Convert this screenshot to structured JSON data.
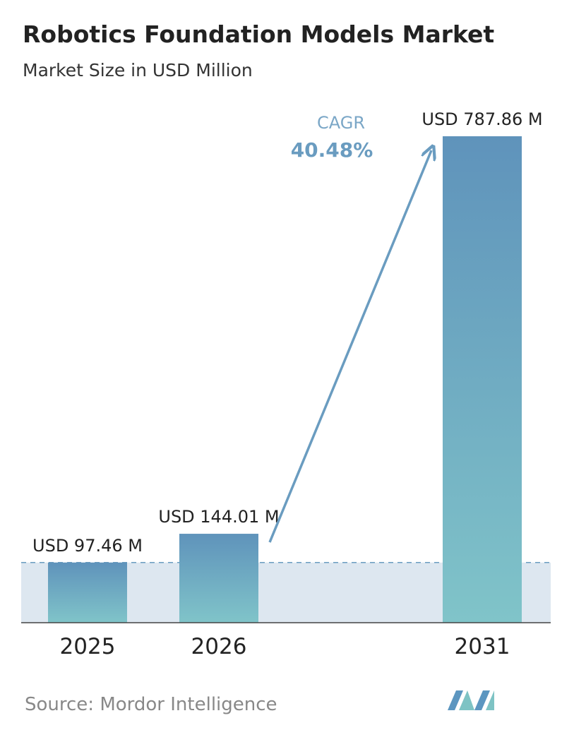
{
  "chart_data": {
    "type": "bar",
    "title": "Robotics Foundation Models Market",
    "subtitle": "Market Size in USD Million",
    "categories": [
      "2025",
      "2026",
      "2031"
    ],
    "values": [
      97.46,
      144.01,
      787.86
    ],
    "value_labels": [
      "USD 97.46 M",
      "USD 144.01 M",
      "USD 787.86 M"
    ],
    "color": "#6199bd",
    "annotations": {
      "cagr_label": "CAGR",
      "cagr_value": "40.48%"
    },
    "source": "Source: Mordor Intelligence"
  }
}
